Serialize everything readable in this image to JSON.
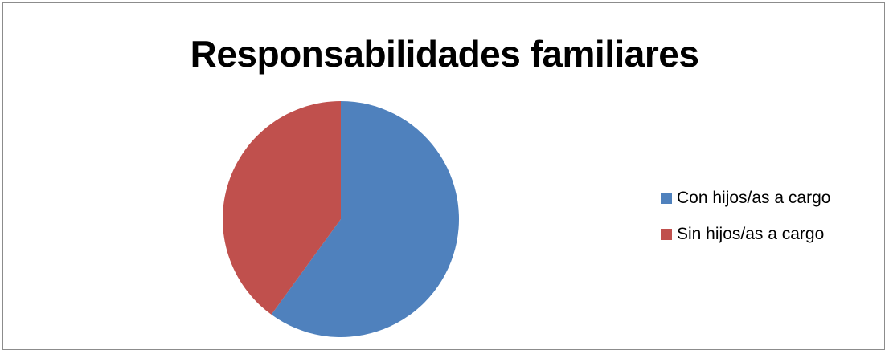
{
  "chart_data": {
    "type": "pie",
    "title": "Responsabilidades familiares",
    "categories": [
      "Con hijos/as a cargo",
      "Sin hijos/as a cargo"
    ],
    "values": [
      60,
      40
    ],
    "colors": [
      "#4F81BD",
      "#C0504D"
    ],
    "start_angle_deg": 0,
    "direction": "clockwise",
    "legend": "right",
    "data_labels": false
  }
}
